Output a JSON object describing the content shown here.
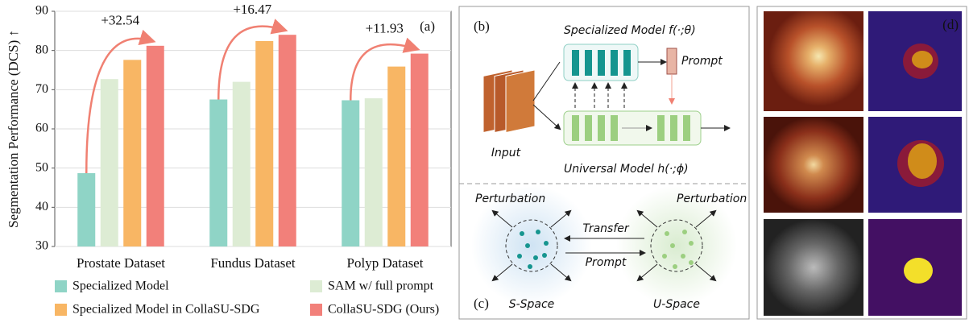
{
  "chart_data": {
    "type": "bar",
    "panel_label": "(a)",
    "ylabel": "Segmentation Performance (DCS) ↑",
    "categories": [
      "Prostate Dataset",
      "Fundus Dataset",
      "Polyp Dataset"
    ],
    "series": [
      {
        "name": "Specialized Model",
        "color": "#8fd4c6",
        "values": [
          48.7,
          67.5,
          67.3
        ]
      },
      {
        "name": "SAM w/ full prompt",
        "color": "#ddecd4",
        "values": [
          72.7,
          72.0,
          67.8
        ]
      },
      {
        "name": "Specialized Model in CollaSU-SDG",
        "color": "#f8b664",
        "values": [
          77.6,
          82.4,
          75.9
        ]
      },
      {
        "name": "CollaSU-SDG (Ours)",
        "color": "#f2807a",
        "values": [
          81.2,
          84.0,
          79.2
        ]
      }
    ],
    "annotations": [
      "+32.54",
      "+16.47",
      "+11.93"
    ],
    "ylim": [
      30,
      90
    ],
    "yticks": [
      30,
      40,
      50,
      60,
      70,
      80,
      90
    ],
    "grid": true
  },
  "diagram": {
    "panel_b": "(b)",
    "specialized_model": "Specialized Model f(·;θ)",
    "prompt_box": "Prompt",
    "input": "Input",
    "universal_model": "Universal Model h(·;ϕ)",
    "panel_c": "(c)",
    "perturbation_left": "Perturbation",
    "perturbation_right": "Perturbation",
    "transfer": "Transfer",
    "prompt_arrow": "Prompt",
    "s_space": "S-Space",
    "u_space": "U-Space"
  },
  "images": {
    "panel_d": "(d)"
  }
}
